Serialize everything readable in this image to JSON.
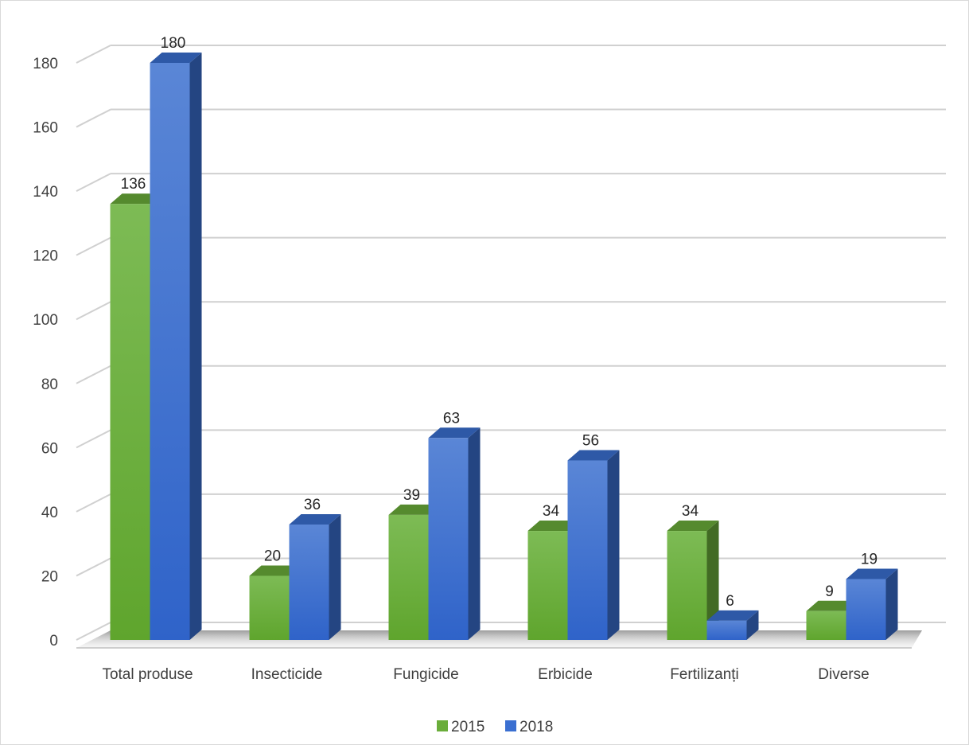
{
  "chart_data": {
    "type": "bar",
    "style": "3d-clustered-column",
    "categories": [
      "Total produse",
      "Insecticide",
      "Fungicide",
      "Erbicide",
      "Fertilizanți",
      "Diverse"
    ],
    "series": [
      {
        "name": "2015",
        "values": [
          136,
          20,
          39,
          34,
          34,
          9
        ],
        "color": "#6aad3a"
      },
      {
        "name": "2018",
        "values": [
          180,
          36,
          63,
          56,
          6,
          19
        ],
        "color": "#3a6fd1"
      }
    ],
    "yticks": [
      "0",
      "20",
      "40",
      "60",
      "80",
      "100",
      "120",
      "140",
      "160",
      "180"
    ],
    "ylim": [
      0,
      180
    ],
    "grid": true,
    "legend_position": "bottom",
    "title": "",
    "xlabel": "",
    "ylabel": ""
  }
}
